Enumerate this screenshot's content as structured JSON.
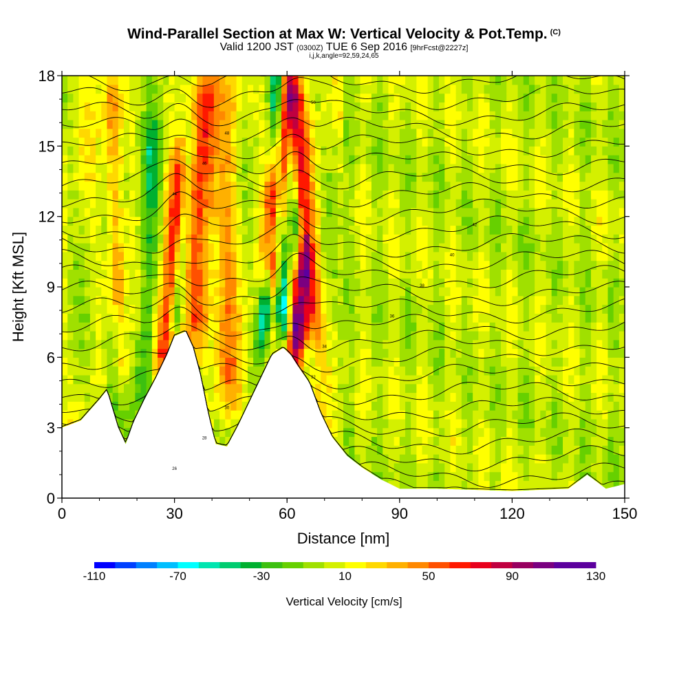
{
  "chart_data": {
    "type": "heatmap",
    "title": "Wind-Parallel Section at Max W: Vertical Velocity & Pot.Temp.",
    "title_mark": "(C)",
    "subtitle_main": "Valid 1200 JST",
    "subtitle_utc": "(0300Z)",
    "subtitle_date": "TUE 6 Sep 2016",
    "subtitle_fcst": "[9hrFcst@2227z]",
    "subtitle2": "i,j,k,angle=92,59,24,65",
    "xlabel": "Distance [nm]",
    "ylabel": "Height [Kft MSL]",
    "xlim": [
      0,
      150
    ],
    "ylim": [
      0,
      18
    ],
    "xticks": [
      0,
      30,
      60,
      90,
      120,
      150
    ],
    "yticks": [
      0,
      3,
      6,
      9,
      12,
      15,
      18
    ],
    "xtick_labels": [
      "0",
      "30",
      "60",
      "90",
      "120",
      "150"
    ],
    "ytick_labels": [
      "0",
      "3",
      "6",
      "9",
      "12",
      "15",
      "18"
    ],
    "colorbar": {
      "title": "Vertical Velocity [cm/s]",
      "min": -110,
      "max": 130,
      "step": 10,
      "tick_labels": [
        "-110",
        "-70",
        "-30",
        "10",
        "50",
        "90",
        "130"
      ],
      "colors": [
        "#0000ff",
        "#0040ff",
        "#0080ff",
        "#00bfff",
        "#00ffff",
        "#00e5b0",
        "#00cc70",
        "#00b030",
        "#3cc010",
        "#66d000",
        "#a0e000",
        "#d4f000",
        "#ffff00",
        "#ffd800",
        "#ffb000",
        "#ff8800",
        "#ff5000",
        "#ff1800",
        "#e8001c",
        "#c00040",
        "#980060",
        "#7a0080",
        "#5c009e",
        "#5c009e"
      ]
    },
    "terrain": [
      [
        0,
        3.0
      ],
      [
        5,
        3.3
      ],
      [
        10,
        4.2
      ],
      [
        12,
        4.6
      ],
      [
        15,
        3.0
      ],
      [
        17,
        2.3
      ],
      [
        19,
        3.2
      ],
      [
        22,
        4.2
      ],
      [
        25,
        5.1
      ],
      [
        28,
        6.1
      ],
      [
        30,
        6.9
      ],
      [
        33,
        7.1
      ],
      [
        35,
        6.4
      ],
      [
        37,
        5.2
      ],
      [
        39,
        3.6
      ],
      [
        41,
        2.3
      ],
      [
        44,
        2.2
      ],
      [
        47,
        3.1
      ],
      [
        50,
        4.1
      ],
      [
        53,
        5.1
      ],
      [
        56,
        6.1
      ],
      [
        59,
        6.4
      ],
      [
        61,
        6.1
      ],
      [
        63,
        5.6
      ],
      [
        66,
        4.9
      ],
      [
        69,
        3.6
      ],
      [
        72,
        2.6
      ],
      [
        76,
        1.8
      ],
      [
        80,
        1.3
      ],
      [
        85,
        0.8
      ],
      [
        90,
        0.4
      ],
      [
        100,
        0.4
      ],
      [
        120,
        0.3
      ],
      [
        135,
        0.4
      ],
      [
        140,
        1.0
      ],
      [
        145,
        0.4
      ],
      [
        150,
        0.6
      ]
    ],
    "updrafts": [
      {
        "x": 27,
        "y0": 5.0,
        "y1": 15.0,
        "w": 3.0,
        "lean": 6.0,
        "value": 80
      },
      {
        "x": 36,
        "y0": 6.5,
        "y1": 18.0,
        "w": 3.5,
        "lean": 2.0,
        "value": 55
      },
      {
        "x": 56,
        "y0": 9.0,
        "y1": 18.0,
        "w": 2.5,
        "lean": 4.0,
        "value": 110
      },
      {
        "x": 62,
        "y0": 5.5,
        "y1": 10.5,
        "w": 2.2,
        "lean": 2.0,
        "value": 120
      },
      {
        "x": 67,
        "y0": 7.0,
        "y1": 18.0,
        "w": 3.0,
        "lean": -6.0,
        "value": 60
      },
      {
        "x": 16,
        "y0": 4.5,
        "y1": 18.0,
        "w": 2.0,
        "lean": -3.0,
        "value": 40
      },
      {
        "x": 44,
        "y0": 4.0,
        "y1": 18.0,
        "w": 3.0,
        "lean": 1.0,
        "value": 30
      }
    ],
    "downdrafts": [
      {
        "x": 30,
        "y0": 6.8,
        "y1": 15.5,
        "w": 2.0,
        "lean": 4.0,
        "value": -75
      },
      {
        "x": 53,
        "y0": 6.5,
        "y1": 12.0,
        "w": 1.8,
        "lean": 4.0,
        "value": -70
      },
      {
        "x": 59,
        "y0": 7.0,
        "y1": 18.0,
        "w": 1.6,
        "lean": -2.0,
        "value": -80
      },
      {
        "x": 64,
        "y0": 8.0,
        "y1": 18.0,
        "w": 1.8,
        "lean": -5.0,
        "value": -60
      },
      {
        "x": 14,
        "y0": 3.0,
        "y1": 8.0,
        "w": 3.0,
        "lean": 0.0,
        "value": -35
      },
      {
        "x": 22,
        "y0": 4.0,
        "y1": 16.0,
        "w": 2.5,
        "lean": 2.0,
        "value": -40
      }
    ],
    "theta_contour_labels": [
      "26",
      "28",
      "30",
      "32",
      "34",
      "36",
      "38",
      "40",
      "42",
      "44",
      "46",
      "48",
      "50"
    ]
  }
}
